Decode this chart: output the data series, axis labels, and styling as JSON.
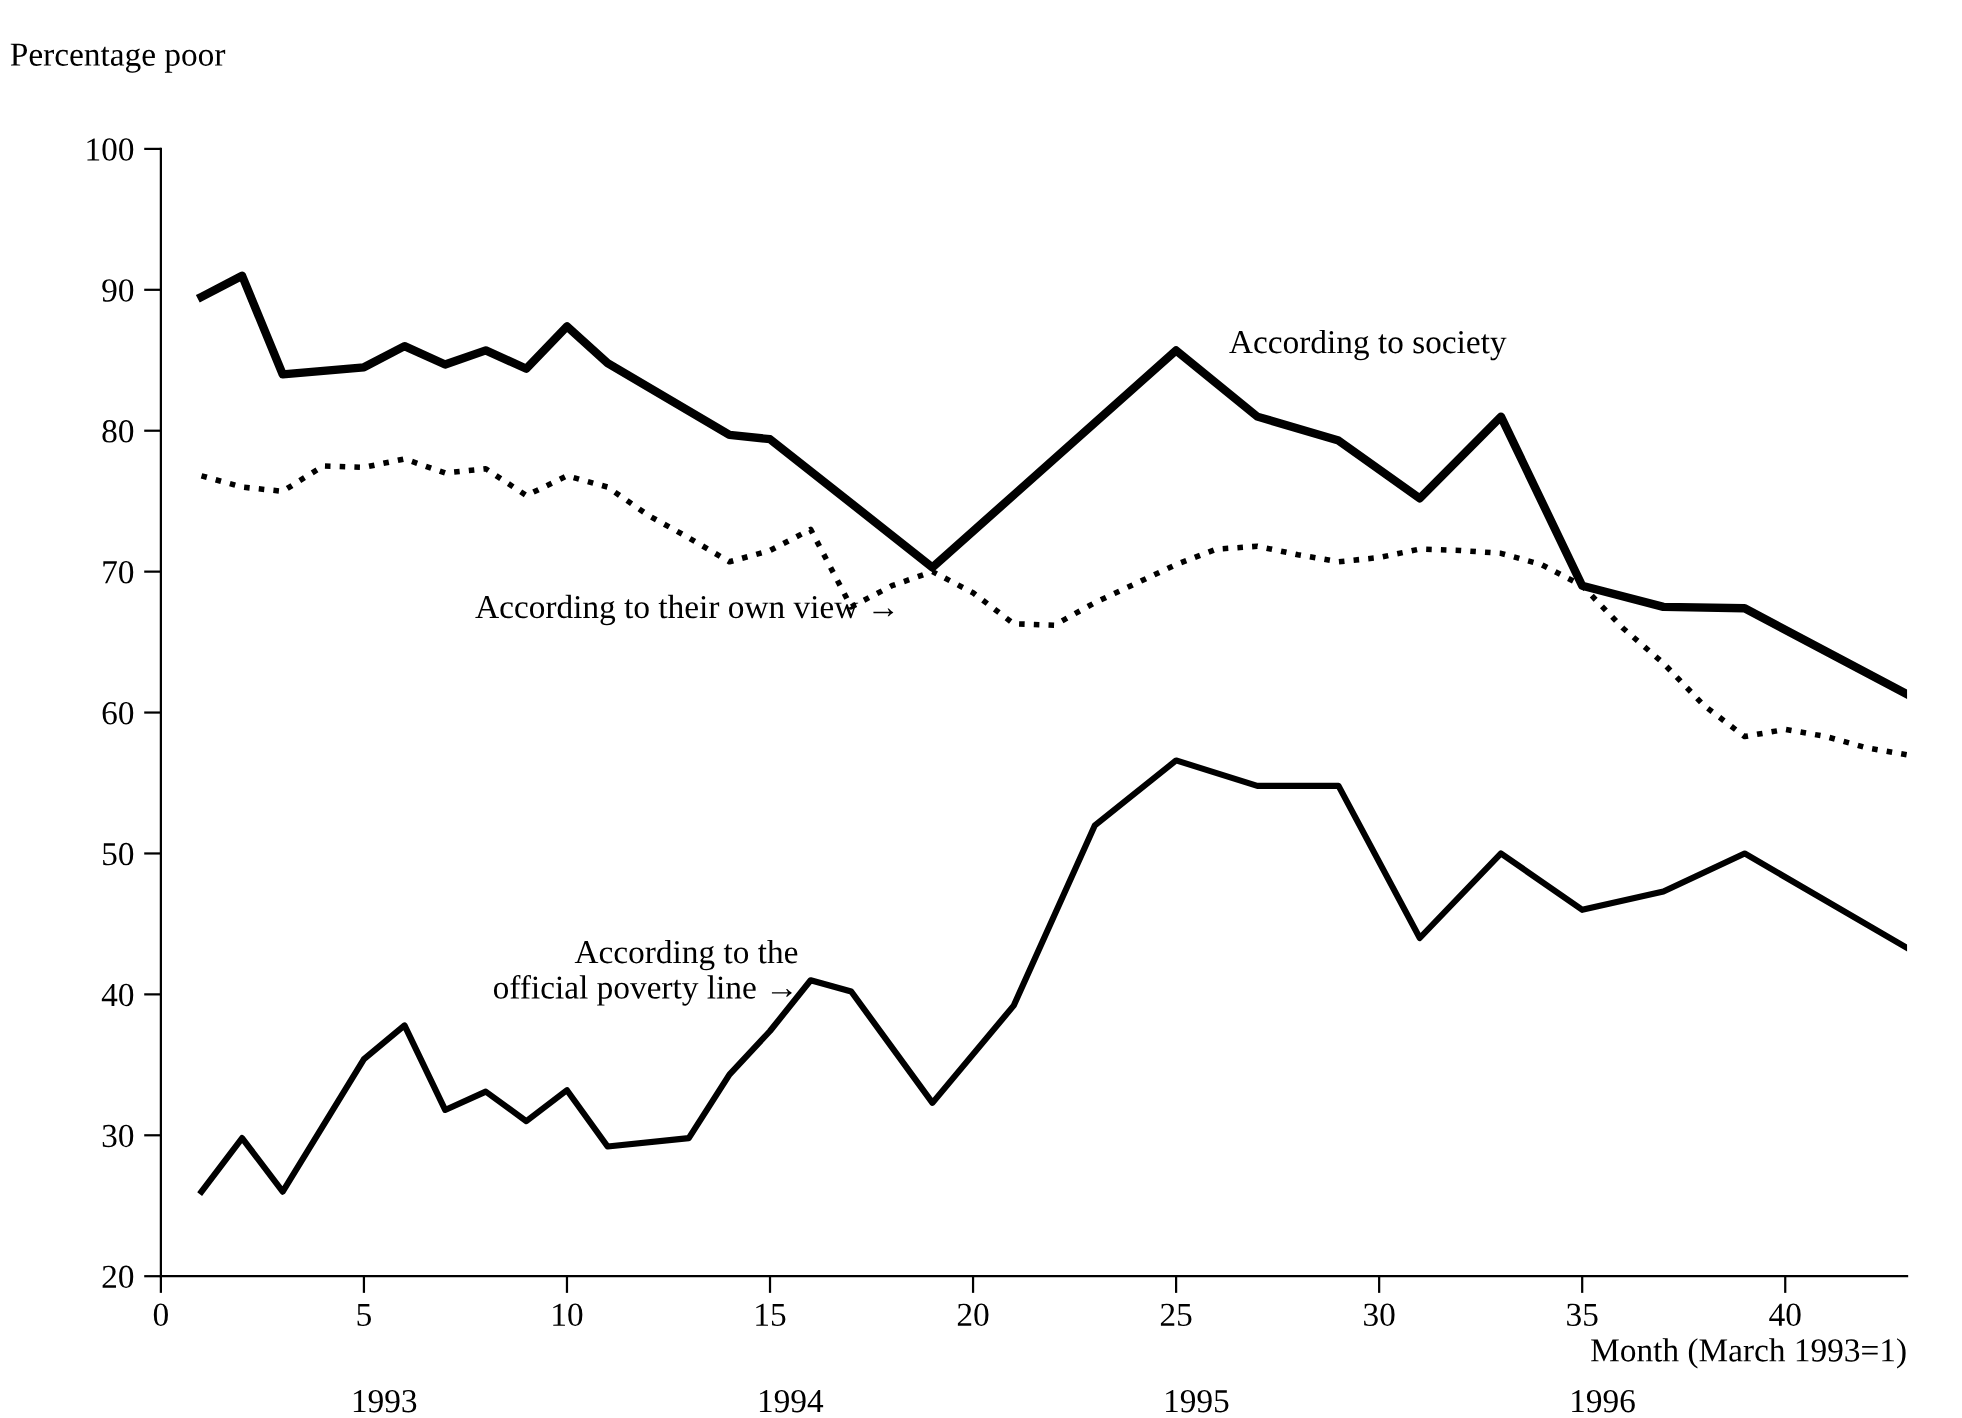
{
  "chart_data": {
    "type": "line",
    "ylabel": "Percentage poor",
    "xlabel": "Month (March 1993=1)",
    "xlim": [
      0,
      43
    ],
    "xticks": [
      0,
      5,
      10,
      15,
      20,
      25,
      30,
      35,
      40
    ],
    "ylim": [
      20,
      100
    ],
    "yticks": [
      20,
      30,
      40,
      50,
      60,
      70,
      80,
      90,
      100
    ],
    "grid": false,
    "legend": false,
    "marker": "none",
    "series": [
      {
        "name": "According to society",
        "color": "#000000",
        "line_style": "solid",
        "x": [
          1,
          2,
          3,
          5,
          6,
          7,
          8,
          9,
          10,
          11,
          14,
          15,
          19,
          25,
          27,
          29,
          31,
          33,
          35,
          37,
          39,
          43
        ],
        "values": [
          89.5,
          91,
          84,
          84.5,
          86,
          84.7,
          85.7,
          84.4,
          87.4,
          84.8,
          79.7,
          79.4,
          70.3,
          85.7,
          81,
          79.3,
          75.2,
          81,
          69,
          67.5,
          67.4,
          61.3
        ]
      },
      {
        "name": "According to their own view →",
        "color": "#000000",
        "line_style": "dotted",
        "x": [
          1,
          2,
          3,
          4,
          5,
          6,
          7,
          8,
          9,
          10,
          11,
          12,
          13,
          14,
          15,
          16,
          17,
          18,
          19,
          20,
          21,
          22,
          23,
          25,
          26,
          27,
          28,
          29,
          30,
          31,
          32,
          33,
          34,
          35,
          36,
          37,
          38,
          39,
          40,
          41,
          42,
          43
        ],
        "values": [
          76.8,
          76,
          75.7,
          77.5,
          77.4,
          78,
          77,
          77.3,
          75.4,
          76.8,
          76,
          74,
          72.4,
          70.7,
          71.5,
          73,
          67.5,
          69,
          70,
          68.5,
          66.3,
          66.2,
          67.8,
          70.5,
          71.6,
          71.8,
          71.2,
          70.7,
          71,
          71.6,
          71.5,
          71.3,
          70.5,
          69,
          66,
          63.5,
          60.5,
          58.3,
          58.8,
          58.3,
          57.5,
          57
        ]
      },
      {
        "name": "According to the\nofficial poverty line →",
        "color": "#000000",
        "line_style": "solid",
        "x": [
          1,
          2,
          3,
          5,
          6,
          7,
          8,
          9,
          10,
          11,
          13,
          14,
          15,
          16,
          17,
          19,
          21,
          23,
          25,
          27,
          29,
          31,
          33,
          35,
          37,
          39,
          43
        ],
        "values": [
          26,
          29.8,
          26,
          35.4,
          37.8,
          31.8,
          33.1,
          31,
          33.2,
          29.2,
          29.8,
          34.3,
          37.4,
          41,
          40.2,
          32.3,
          39.2,
          52,
          56.6,
          54.8,
          54.8,
          44,
          50,
          46,
          47.3,
          50,
          43.3
        ]
      }
    ],
    "annotations": [
      "1993",
      "1994",
      "1995",
      "1996"
    ]
  }
}
